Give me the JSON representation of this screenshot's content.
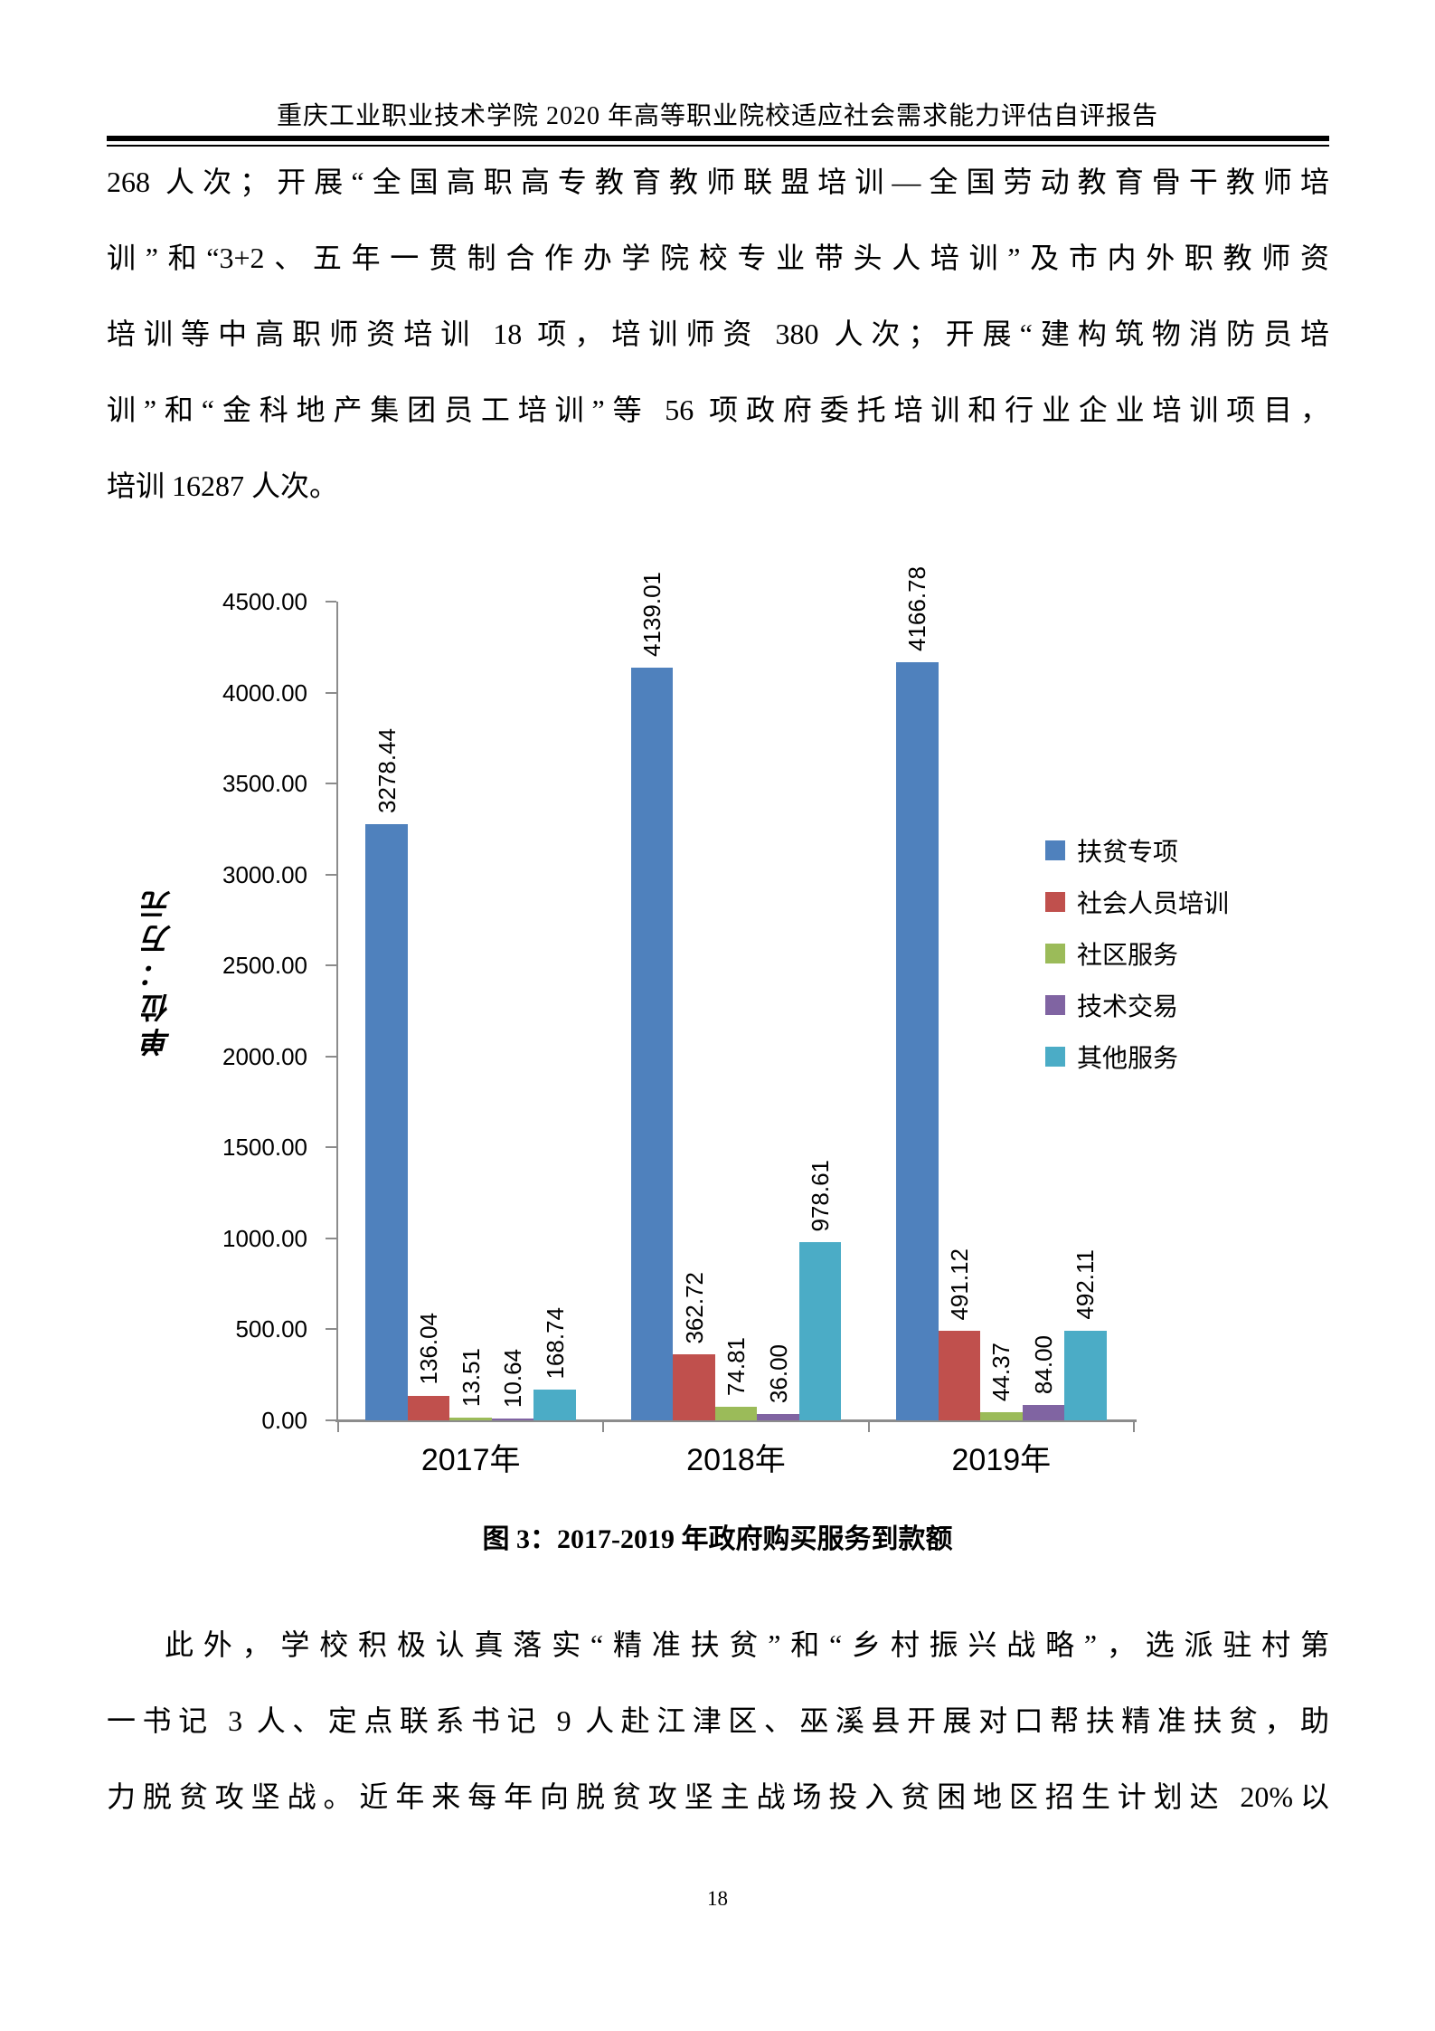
{
  "header": {
    "title": "重庆工业职业技术学院 2020 年高等职业院校适应社会需求能力评估自评报告"
  },
  "body": {
    "paragraph1_lines": [
      "268 人次；开展“全国高职高专教育教师联盟培训—全国劳动教育骨干教师培",
      "训”和“3+2、五年一贯制合作办学院校专业带头人培训”及市内外职教师资",
      "培训等中高职师资培训 18 项，培训师资 380 人次；开展“建构筑物消防员培",
      "训”和“金科地产集团员工培训”等 56 项政府委托培训和行业企业培训项目，",
      "培训 16287 人次。"
    ],
    "figure_caption": "图 3：2017-2019 年政府购买服务到款额",
    "paragraph2_lines": [
      "此外，学校积极认真落实“精准扶贫”和“乡村振兴战略”，选派驻村第",
      "一书记 3 人、定点联系书记 9 人赴江津区、巫溪县开展对口帮扶精准扶贫，助",
      "力脱贫攻坚战。近年来每年向脱贫攻坚主战场投入贫困地区招生计划达 20%以"
    ]
  },
  "footer": {
    "page_number": "18"
  },
  "chart_data": {
    "type": "bar",
    "title": "图 3：2017-2019 年政府购买服务到款额",
    "xlabel": "",
    "ylabel": "单位：万元",
    "categories": [
      "2017年",
      "2018年",
      "2019年"
    ],
    "series": [
      {
        "name": "扶贫专项",
        "color": "#4F81BD",
        "values": [
          3278.44,
          4139.01,
          4166.78
        ]
      },
      {
        "name": "社会人员培训",
        "color": "#C0504D",
        "values": [
          136.04,
          362.72,
          491.12
        ]
      },
      {
        "name": "社区服务",
        "color": "#9BBB59",
        "values": [
          13.51,
          74.81,
          44.37
        ]
      },
      {
        "name": "技术交易",
        "color": "#8064A2",
        "values": [
          10.64,
          36.0,
          84.0
        ]
      },
      {
        "name": "其他服务",
        "color": "#4BACC6",
        "values": [
          168.74,
          978.61,
          492.11
        ]
      }
    ],
    "ylim": [
      0,
      4500
    ],
    "ytick_step": 500,
    "ytick_labels": [
      "0.00",
      "500.00",
      "1000.00",
      "1500.00",
      "2000.00",
      "2500.00",
      "3000.00",
      "3500.00",
      "4000.00",
      "4500.00"
    ],
    "value_labels_rotated": true,
    "grid": false,
    "legend_position": "right",
    "axis_color": "#8c8c8c"
  }
}
